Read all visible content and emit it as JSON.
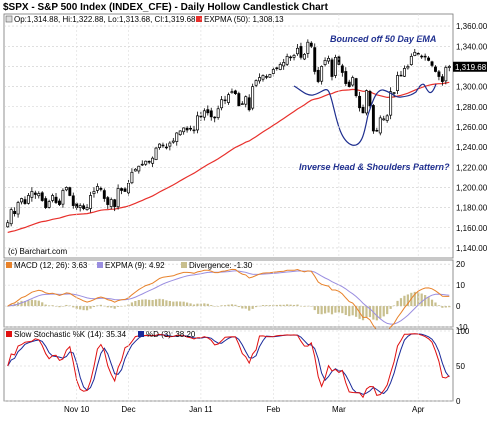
{
  "page_title": "$SPX - S&P 500 Index (INDEX_CFE) - Daily Hollow Candlestick Chart",
  "price_panel": {
    "legend_ohlc": "Op:1,314.88, Hi:1,322.88, Lo:1,313.68, Cl:1,319.68",
    "legend_ema": "EXPMA (50): 1,308.13",
    "last_close_label": "1,319.68",
    "annotation_bounce": "Bounced  off 50 Day EMA",
    "annotation_pattern": "Inverse Head & Shoulders Pattern?",
    "credit": "(c) Barchart.com",
    "ema_color": "#e8302c",
    "candle_color": "#000000",
    "pattern_color": "#1f2f8f"
  },
  "macd_panel": {
    "legend_macd": "MACD (12, 26): 3.63",
    "legend_signal": "EXPMA (9): 4.92",
    "legend_divergence": "Divergence: -1.30",
    "macd_color": "#e8822a",
    "signal_color": "#9a8ee0",
    "divergence_color": "#c8bf8e"
  },
  "stoch_panel": {
    "legend_k": "Slow Stochastic %K (14): 35.34",
    "legend_d": "%D (3): 38.20",
    "k_color": "#e01010",
    "d_color": "#1a2a9a"
  },
  "x_axis": {
    "ticks": [
      {
        "label": "Nov 10",
        "bar": 20
      },
      {
        "label": "Dec",
        "bar": 35
      },
      {
        "label": "Jan 11",
        "bar": 56
      },
      {
        "label": "Feb",
        "bar": 77
      },
      {
        "label": "Mar",
        "bar": 96
      },
      {
        "label": "Apr",
        "bar": 119
      }
    ]
  },
  "chart_data": [
    {
      "type": "candlestick",
      "title": "$SPX - S&P 500 Index (INDEX_CFE) - Daily Hollow Candlestick Chart",
      "ylim": [
        1130,
        1372
      ],
      "y_ticks": [
        1140,
        1160,
        1180,
        1200,
        1220,
        1240,
        1260,
        1280,
        1300,
        1320,
        1340,
        1360
      ],
      "y_tick_labels": [
        "1,140.00",
        "1,160.00",
        "1,180.00",
        "1,200.00",
        "1,220.00",
        "1,240.00",
        "1,260.00",
        "1,280.00",
        "1,300.00",
        "1,320.00",
        "1,340.00",
        "1,360.00"
      ],
      "close": [
        1165,
        1178,
        1174,
        1185,
        1189,
        1184,
        1192,
        1196,
        1193,
        1194,
        1187,
        1180,
        1186,
        1192,
        1185,
        1183,
        1197,
        1200,
        1192,
        1182,
        1180,
        1182,
        1179,
        1180,
        1192,
        1196,
        1201,
        1198,
        1189,
        1183,
        1188,
        1181,
        1199,
        1197,
        1196,
        1204,
        1215,
        1218,
        1221,
        1223,
        1226,
        1225,
        1229,
        1239,
        1243,
        1242,
        1240,
        1244,
        1246,
        1254,
        1256,
        1259,
        1257,
        1258,
        1257,
        1271,
        1270,
        1276,
        1274,
        1270,
        1269,
        1278,
        1287,
        1286,
        1292,
        1295,
        1293,
        1281,
        1283,
        1290,
        1277,
        1300,
        1306,
        1309,
        1311,
        1310,
        1312,
        1317,
        1318,
        1322,
        1324,
        1330,
        1329,
        1331,
        1338,
        1329,
        1332,
        1344,
        1340,
        1315,
        1305,
        1320,
        1326,
        1328,
        1310,
        1329,
        1322,
        1314,
        1303,
        1300,
        1309,
        1291,
        1279,
        1274,
        1296,
        1281,
        1256,
        1256,
        1269,
        1268,
        1271,
        1295,
        1294,
        1311,
        1311,
        1318,
        1320,
        1330,
        1334,
        1332,
        1330,
        1330,
        1326,
        1321,
        1315,
        1310,
        1305,
        1319,
        1320
      ],
      "ema50_last": 1308.13,
      "last_close": 1319.68,
      "pattern_overlay": "inverse head and shoulders curve drawn around Feb–Apr lows",
      "x_category_labels": [
        "Nov 10",
        "Dec",
        "Jan 11",
        "Feb",
        "Mar",
        "Apr"
      ]
    },
    {
      "type": "line+bar",
      "title": "MACD (12, 26)",
      "ylim": [
        -10,
        22
      ],
      "y_ticks": [
        -10,
        0,
        10,
        20
      ],
      "series": [
        {
          "name": "MACD (12, 26)",
          "last": 3.63
        },
        {
          "name": "EXPMA (9)",
          "last": 4.92
        },
        {
          "name": "Divergence",
          "last": -1.3
        }
      ]
    },
    {
      "type": "line",
      "title": "Slow Stochastic",
      "ylim": [
        0,
        100
      ],
      "y_ticks": [
        0,
        50,
        100
      ],
      "series": [
        {
          "name": "Slow Stochastic %K (14)",
          "last": 35.34
        },
        {
          "name": "%D (3)",
          "last": 38.2
        }
      ]
    }
  ]
}
